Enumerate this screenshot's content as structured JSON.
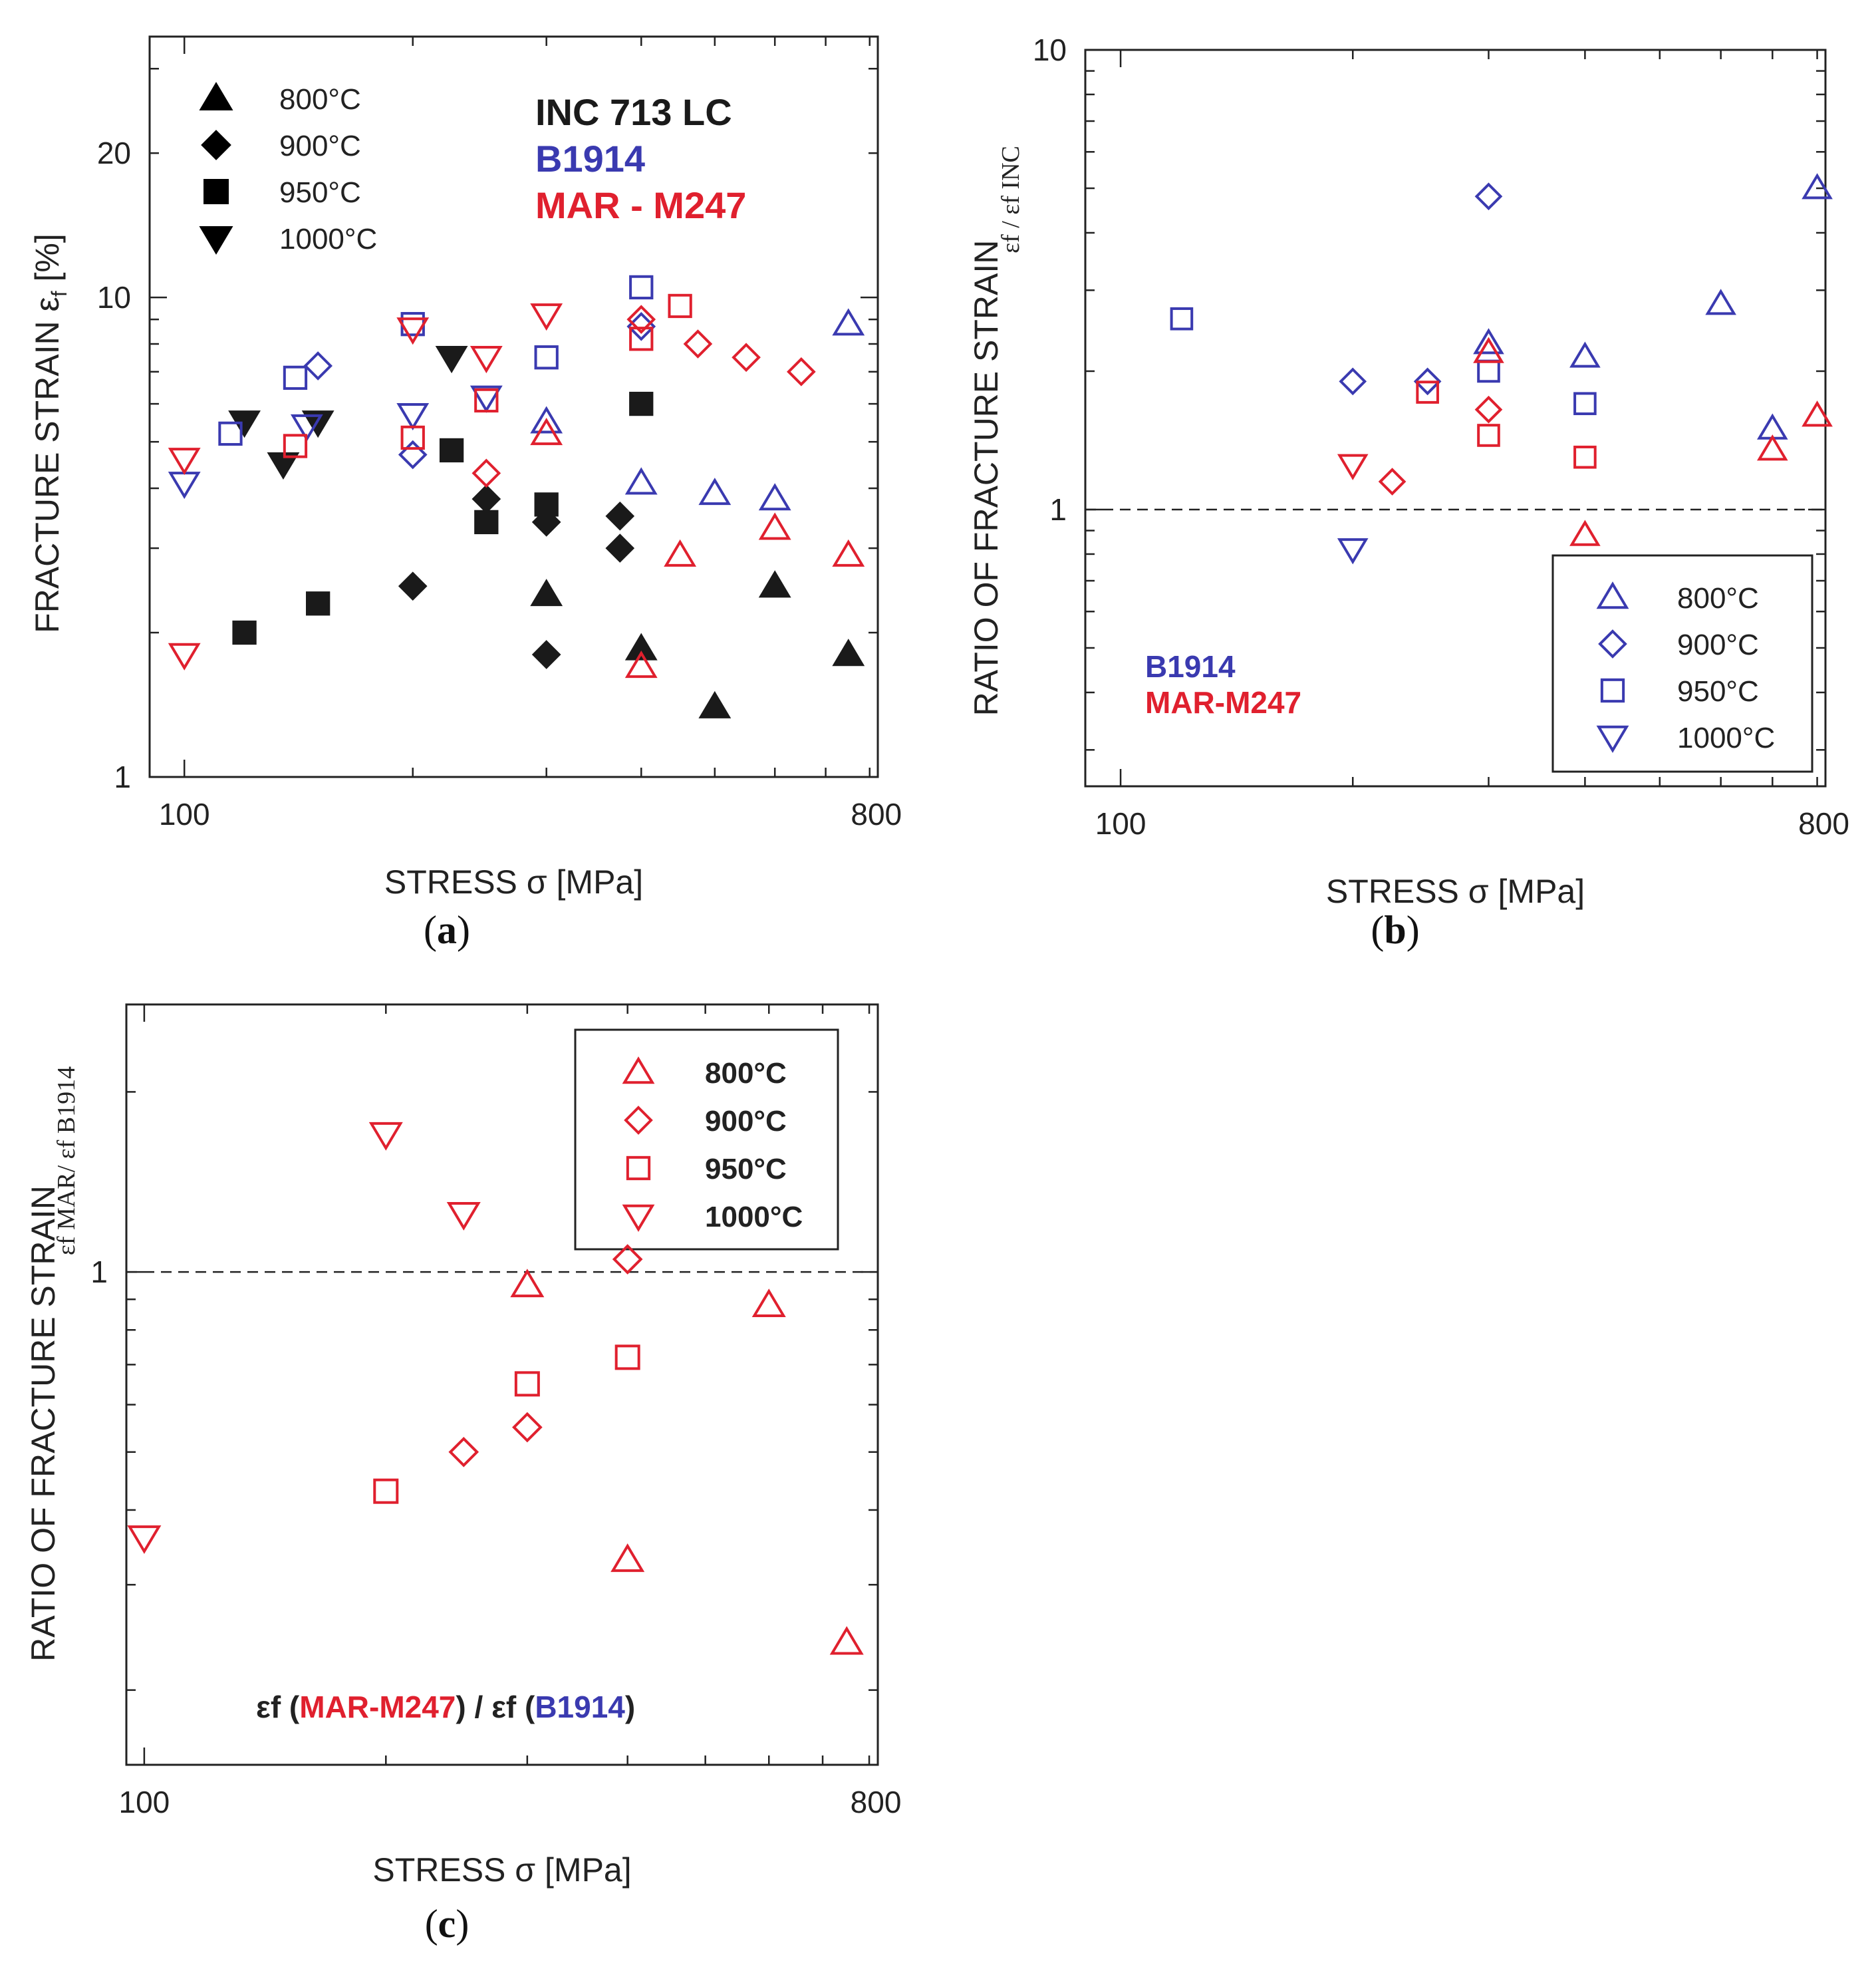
{
  "colors": {
    "black": "#1a1a1a",
    "blue": "#3a3ab0",
    "red": "#e0202e",
    "legend_black": "#000000"
  },
  "chart_data": [
    {
      "id": "a",
      "type": "scatter",
      "caption": "(a)",
      "caption_letter": "a",
      "xlabel": "STRESS  σ  [MPa]",
      "ylabel": "FRACTURE STRAIN  ε",
      "ylabel_sub": "f",
      "ylabel_unit": "  [%]",
      "x_scale": "log",
      "y_scale": "log",
      "xlim": [
        90,
        820
      ],
      "ylim": [
        1,
        35
      ],
      "xticks": [
        100,
        800
      ],
      "yticks": [
        1,
        10,
        20
      ],
      "legend": {
        "placement": "top-left",
        "entries": [
          {
            "marker": "triangle-up",
            "filled": true,
            "label": "800°C"
          },
          {
            "marker": "diamond",
            "filled": true,
            "label": "900°C"
          },
          {
            "marker": "square",
            "filled": true,
            "label": "950°C"
          },
          {
            "marker": "triangle-down",
            "filled": true,
            "label": "1000°C"
          }
        ]
      },
      "materials_legend": [
        {
          "label": "INC 713 LC",
          "color": "black"
        },
        {
          "label": "B1914",
          "color": "blue"
        },
        {
          "label": "MAR - M247",
          "color": "red"
        }
      ],
      "series": [
        {
          "name": "INC 713 LC 800°C",
          "marker": "triangle-up",
          "filled": true,
          "color": "black",
          "points": [
            [
              300,
              2.4
            ],
            [
              400,
              1.85
            ],
            [
              500,
              1.4
            ],
            [
              600,
              2.5
            ],
            [
              750,
              1.8
            ]
          ]
        },
        {
          "name": "INC 713 LC 900°C",
          "marker": "diamond",
          "filled": true,
          "color": "black",
          "points": [
            [
              200,
              2.5
            ],
            [
              250,
              3.8
            ],
            [
              300,
              3.4
            ],
            [
              300,
              1.8
            ],
            [
              375,
              3.0
            ],
            [
              375,
              3.5
            ]
          ]
        },
        {
          "name": "INC 713 LC 950°C",
          "marker": "square",
          "filled": true,
          "color": "black",
          "points": [
            [
              120,
              2.0
            ],
            [
              150,
              2.3
            ],
            [
              225,
              4.8
            ],
            [
              250,
              3.4
            ],
            [
              300,
              3.7
            ],
            [
              400,
              6.0
            ]
          ]
        },
        {
          "name": "INC 713 LC 1000°C",
          "marker": "triangle-down",
          "filled": true,
          "color": "black",
          "points": [
            [
              120,
              5.5
            ],
            [
              135,
              4.5
            ],
            [
              150,
              5.5
            ],
            [
              225,
              7.5
            ]
          ]
        },
        {
          "name": "B1914 800°C",
          "marker": "triangle-up",
          "filled": false,
          "color": "blue",
          "points": [
            [
              300,
              5.5
            ],
            [
              400,
              4.1
            ],
            [
              500,
              3.9
            ],
            [
              600,
              3.8
            ],
            [
              750,
              8.8
            ]
          ]
        },
        {
          "name": "B1914 900°C",
          "marker": "diamond",
          "filled": false,
          "color": "blue",
          "points": [
            [
              150,
              7.2
            ],
            [
              200,
              4.7
            ],
            [
              400,
              8.7
            ]
          ]
        },
        {
          "name": "B1914 950°C",
          "marker": "square",
          "filled": false,
          "color": "blue",
          "points": [
            [
              115,
              5.2
            ],
            [
              140,
              6.8
            ],
            [
              200,
              8.8
            ],
            [
              300,
              7.5
            ],
            [
              400,
              10.5
            ]
          ]
        },
        {
          "name": "B1914 1000°C",
          "marker": "triangle-down",
          "filled": false,
          "color": "blue",
          "points": [
            [
              100,
              4.1
            ],
            [
              145,
              5.4
            ],
            [
              200,
              5.7
            ],
            [
              250,
              6.2
            ]
          ]
        },
        {
          "name": "MAR-M247 800°C",
          "marker": "triangle-up",
          "filled": false,
          "color": "red",
          "points": [
            [
              300,
              5.2
            ],
            [
              400,
              1.7
            ],
            [
              450,
              2.9
            ],
            [
              600,
              3.3
            ],
            [
              750,
              2.9
            ]
          ]
        },
        {
          "name": "MAR-M247 900°C",
          "marker": "diamond",
          "filled": false,
          "color": "red",
          "points": [
            [
              250,
              4.3
            ],
            [
              400,
              9.0
            ],
            [
              475,
              8.0
            ],
            [
              550,
              7.5
            ],
            [
              650,
              7.0
            ]
          ]
        },
        {
          "name": "MAR-M247 950°C",
          "marker": "square",
          "filled": false,
          "color": "red",
          "points": [
            [
              140,
              4.9
            ],
            [
              200,
              5.1
            ],
            [
              250,
              6.1
            ],
            [
              400,
              8.2
            ],
            [
              450,
              9.6
            ]
          ]
        },
        {
          "name": "MAR-M247 1000°C",
          "marker": "triangle-down",
          "filled": false,
          "color": "red",
          "points": [
            [
              100,
              4.6
            ],
            [
              100,
              1.8
            ],
            [
              200,
              8.6
            ],
            [
              250,
              7.5
            ],
            [
              300,
              9.2
            ]
          ]
        }
      ]
    },
    {
      "id": "b",
      "type": "scatter",
      "caption": "(b)",
      "caption_letter": "b",
      "xlabel": "STRESS  σ  [MPa]",
      "ylabel": "RATIO OF FRACTURE STRAIN",
      "ylabel_ratio": "εf / εf INC",
      "x_scale": "log",
      "y_scale": "log",
      "xlim": [
        90,
        820
      ],
      "ylim": [
        0.25,
        10
      ],
      "xticks": [
        100,
        800
      ],
      "yticks": [
        1,
        10
      ],
      "reference_line": 1,
      "legend": {
        "placement": "bottom-right",
        "color": "blue",
        "entries": [
          {
            "marker": "triangle-up",
            "filled": false,
            "label": "800°C"
          },
          {
            "marker": "diamond",
            "filled": false,
            "label": "900°C"
          },
          {
            "marker": "square",
            "filled": false,
            "label": "950°C"
          },
          {
            "marker": "triangle-down",
            "filled": false,
            "label": "1000°C"
          }
        ]
      },
      "materials_legend": [
        {
          "label": "B1914",
          "color": "blue"
        },
        {
          "label": "MAR-M247",
          "color": "red"
        }
      ],
      "series": [
        {
          "name": "B1914 800°C",
          "marker": "triangle-up",
          "filled": false,
          "color": "blue",
          "points": [
            [
              300,
              2.3
            ],
            [
              400,
              2.15
            ],
            [
              600,
              2.8
            ],
            [
              700,
              1.5
            ],
            [
              800,
              5.0
            ]
          ]
        },
        {
          "name": "B1914 900°C",
          "marker": "diamond",
          "filled": false,
          "color": "blue",
          "points": [
            [
              200,
              1.9
            ],
            [
              250,
              1.9
            ],
            [
              300,
              4.8
            ]
          ]
        },
        {
          "name": "B1914 950°C",
          "marker": "square",
          "filled": false,
          "color": "blue",
          "points": [
            [
              120,
              2.6
            ],
            [
              300,
              2.0
            ],
            [
              400,
              1.7
            ]
          ]
        },
        {
          "name": "B1914 1000°C",
          "marker": "triangle-down",
          "filled": false,
          "color": "blue",
          "points": [
            [
              200,
              0.82
            ]
          ]
        },
        {
          "name": "MAR-M247 800°C",
          "marker": "triangle-up",
          "filled": false,
          "color": "red",
          "points": [
            [
              300,
              2.2
            ],
            [
              400,
              0.88
            ],
            [
              700,
              1.35
            ],
            [
              800,
              1.6
            ]
          ]
        },
        {
          "name": "MAR-M247 900°C",
          "marker": "diamond",
          "filled": false,
          "color": "red",
          "points": [
            [
              225,
              1.15
            ],
            [
              300,
              1.65
            ]
          ]
        },
        {
          "name": "MAR-M247 950°C",
          "marker": "square",
          "filled": false,
          "color": "red",
          "points": [
            [
              250,
              1.8
            ],
            [
              300,
              1.45
            ],
            [
              400,
              1.3
            ]
          ]
        },
        {
          "name": "MAR-M247 1000°C",
          "marker": "triangle-down",
          "filled": false,
          "color": "red",
          "points": [
            [
              200,
              1.25
            ]
          ]
        }
      ]
    },
    {
      "id": "c",
      "type": "scatter",
      "caption": "(c)",
      "caption_letter": "c",
      "xlabel": "STRESS  σ  [MPa]",
      "ylabel": "RATIO OF FRACTURE STRAIN",
      "ylabel_ratio": "εf MAR/ εf B1914",
      "annotation": {
        "prefix": "εf (",
        "num": "MAR-M247",
        "mid": ") / εf (",
        "den": "B1914",
        "suffix": ")"
      },
      "x_scale": "log",
      "y_scale": "log",
      "xlim": [
        95,
        820
      ],
      "ylim": [
        0.15,
        2.8
      ],
      "xticks": [
        100,
        800
      ],
      "yticks": [
        1
      ],
      "reference_line": 1,
      "legend": {
        "placement": "top-right",
        "color": "red",
        "entries": [
          {
            "marker": "triangle-up",
            "filled": false,
            "label": "800°C"
          },
          {
            "marker": "diamond",
            "filled": false,
            "label": "900°C"
          },
          {
            "marker": "square",
            "filled": false,
            "label": "950°C"
          },
          {
            "marker": "triangle-down",
            "filled": false,
            "label": "1000°C"
          }
        ]
      },
      "series": [
        {
          "name": "MAR/B1914 800°C",
          "marker": "triangle-up",
          "filled": false,
          "color": "red",
          "points": [
            [
              300,
              0.95
            ],
            [
              400,
              0.33
            ],
            [
              600,
              0.88
            ],
            [
              750,
              0.24
            ]
          ]
        },
        {
          "name": "MAR/B1914 900°C",
          "marker": "diamond",
          "filled": false,
          "color": "red",
          "points": [
            [
              250,
              0.5
            ],
            [
              300,
              0.55
            ],
            [
              400,
              1.05
            ]
          ]
        },
        {
          "name": "MAR/B1914 950°C",
          "marker": "square",
          "filled": false,
          "color": "red",
          "points": [
            [
              200,
              0.43
            ],
            [
              300,
              0.65
            ],
            [
              400,
              0.72
            ]
          ]
        },
        {
          "name": "MAR/B1914 1000°C",
          "marker": "triangle-down",
          "filled": false,
          "color": "red",
          "points": [
            [
              100,
              0.36
            ],
            [
              200,
              1.7
            ],
            [
              250,
              1.25
            ]
          ]
        }
      ]
    }
  ]
}
